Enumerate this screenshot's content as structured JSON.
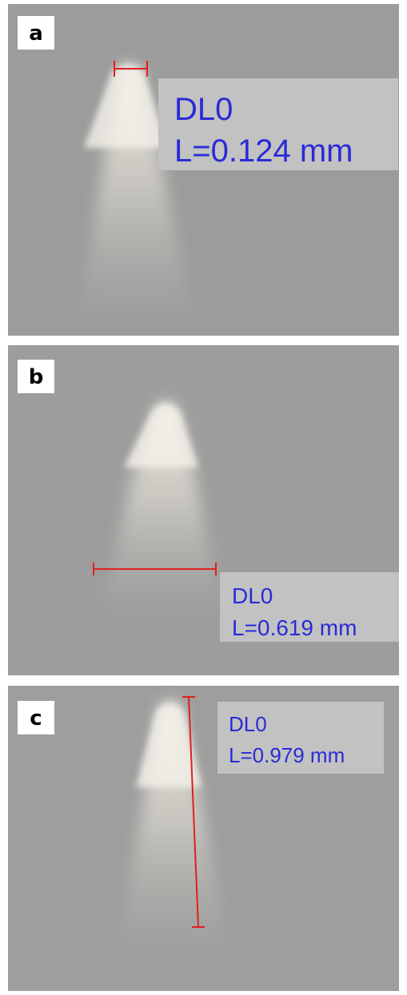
{
  "panels": [
    {
      "label": "a",
      "name": "DL0",
      "measurement": "L=0.124 mm"
    },
    {
      "label": "b",
      "name": "DL0",
      "measurement": "L=0.619 mm"
    },
    {
      "label": "c",
      "name": "DL0",
      "measurement": "L=0.979 mm"
    }
  ]
}
